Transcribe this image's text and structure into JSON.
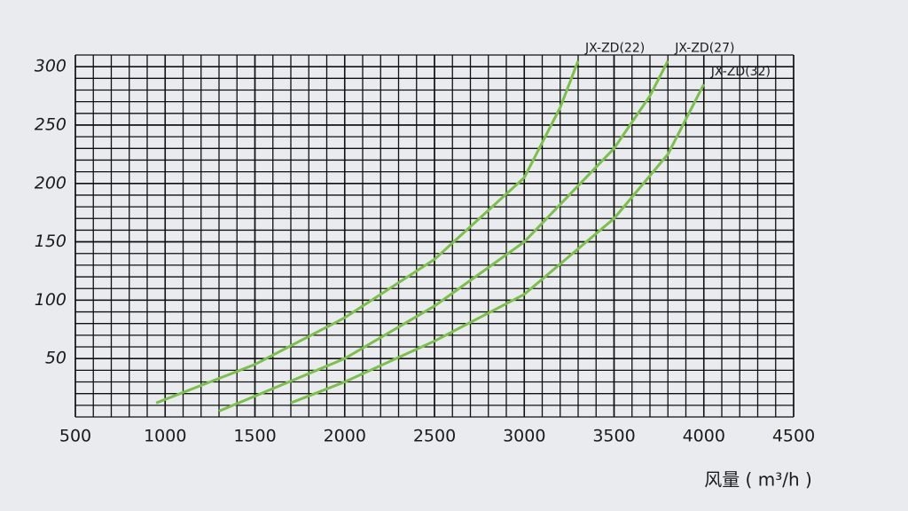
{
  "chart_data": {
    "type": "line",
    "x_label": "风量 ( m³/h )",
    "xlim": [
      500,
      4500
    ],
    "xticks": [
      500,
      1000,
      1500,
      2000,
      2500,
      3000,
      3500,
      4000,
      4500
    ],
    "ylim": [
      0,
      310
    ],
    "yticks": [
      50,
      100,
      150,
      200,
      250,
      300
    ],
    "grid": true,
    "series": [
      {
        "name": "JX-ZD(22)",
        "color": "#7cc04a",
        "x": [
          950,
          1500,
          2000,
          2500,
          3000,
          3200,
          3300
        ],
        "values": [
          12,
          45,
          85,
          135,
          205,
          265,
          305
        ]
      },
      {
        "name": "JX-ZD(27)",
        "color": "#7cc04a",
        "x": [
          1300,
          2000,
          2500,
          3000,
          3500,
          3700,
          3800
        ],
        "values": [
          5,
          50,
          95,
          150,
          230,
          275,
          305
        ]
      },
      {
        "name": "JX-ZD(32)",
        "color": "#7cc04a",
        "x": [
          1700,
          2000,
          2500,
          3000,
          3500,
          3800,
          4000
        ],
        "values": [
          12,
          30,
          65,
          105,
          170,
          225,
          285
        ]
      }
    ]
  }
}
